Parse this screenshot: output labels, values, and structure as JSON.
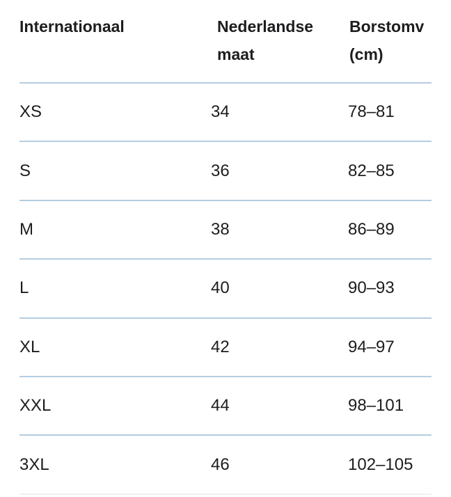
{
  "table": {
    "columns": [
      {
        "id": "international",
        "label": "Internationaal"
      },
      {
        "id": "dutch_size",
        "label": "Nederlandse\nmaat"
      },
      {
        "id": "chest_cm",
        "label": "Borstomv\n(cm)"
      }
    ],
    "rows": [
      {
        "international": "XS",
        "dutch_size": "34",
        "chest_cm": "78–81"
      },
      {
        "international": "S",
        "dutch_size": "36",
        "chest_cm": "82–85"
      },
      {
        "international": "M",
        "dutch_size": "38",
        "chest_cm": "86–89"
      },
      {
        "international": "L",
        "dutch_size": "40",
        "chest_cm": "90–93"
      },
      {
        "international": "XL",
        "dutch_size": "42",
        "chest_cm": "94–97"
      },
      {
        "international": "XXL",
        "dutch_size": "44",
        "chest_cm": "98–101"
      },
      {
        "international": "3XL",
        "dutch_size": "46",
        "chest_cm": "102–105"
      }
    ]
  },
  "colors": {
    "text": "#1d1d1f",
    "divider": "#b4cde1",
    "divider_faint": "#eef1f3",
    "background": "#ffffff"
  }
}
